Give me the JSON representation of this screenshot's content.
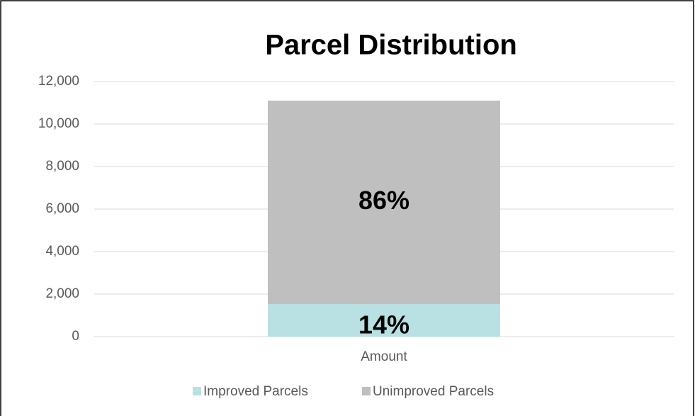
{
  "chart_data": {
    "type": "stacked_bar",
    "title": "Parcel Distribution",
    "categories": [
      "Amount"
    ],
    "series": [
      {
        "name": "Improved Parcels",
        "color": "#b9e0e3",
        "values": [
          1530
        ],
        "data_labels": [
          "14%"
        ]
      },
      {
        "name": "Unimproved Parcels",
        "color": "#bfbfbf",
        "values": [
          9570
        ],
        "data_labels": [
          "86%"
        ]
      }
    ],
    "ylim": [
      0,
      12000
    ],
    "yticks": [
      {
        "value": 0,
        "label": "0"
      },
      {
        "value": 2000,
        "label": "2,000"
      },
      {
        "value": 4000,
        "label": "4,000"
      },
      {
        "value": 6000,
        "label": "6,000"
      },
      {
        "value": 8000,
        "label": "8,000"
      },
      {
        "value": 10000,
        "label": "10,000"
      },
      {
        "value": 12000,
        "label": "12,000"
      }
    ],
    "grid": true,
    "legend": "bottom"
  }
}
